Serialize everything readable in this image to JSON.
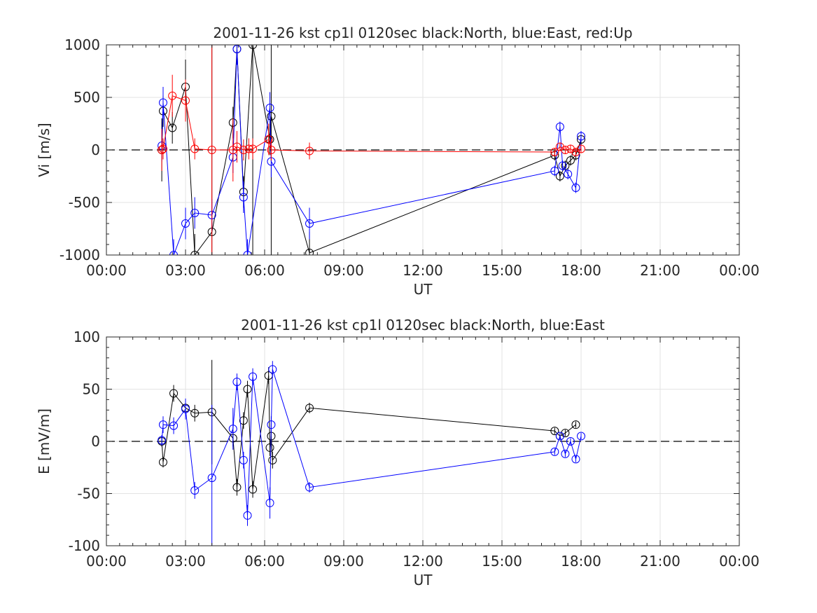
{
  "chart_data": [
    {
      "type": "scatter",
      "title": "2001-11-26 kst cp1l 0120sec black:North, blue:East, red:Up",
      "xlabel": "UT",
      "ylabel": "Vi [m/s]",
      "xlim": [
        0,
        24
      ],
      "ylim": [
        -1000,
        1000
      ],
      "x_ticks": [
        "00:00",
        "03:00",
        "06:00",
        "09:00",
        "12:00",
        "15:00",
        "18:00",
        "21:00",
        "00:00"
      ],
      "y_ticks": [
        "-1000",
        "-500",
        "0",
        "500",
        "1000"
      ],
      "grid": true,
      "zero_line": "dashed",
      "series": [
        {
          "color": "#000000",
          "x": [
            2.1,
            2.15,
            2.5,
            3.0,
            3.35,
            4.0,
            4.8,
            4.95,
            5.2,
            5.55,
            6.2,
            6.25,
            7.7,
            17.0,
            17.2,
            17.4,
            17.6,
            17.8,
            18.0
          ],
          "y": [
            0,
            370,
            210,
            600,
            -1000,
            -780,
            260,
            960,
            -400,
            1000,
            100,
            320,
            -980,
            -50,
            -250,
            -150,
            -100,
            -50,
            100
          ],
          "err": [
            300,
            150,
            150,
            260,
            200,
            2000,
            150,
            150,
            150,
            2000,
            150,
            2000,
            200,
            50,
            50,
            50,
            50,
            50,
            50
          ]
        },
        {
          "color": "#0000ff",
          "x": [
            2.1,
            2.15,
            2.55,
            3.0,
            3.35,
            4.0,
            4.8,
            4.95,
            5.2,
            5.35,
            6.2,
            6.25,
            7.7,
            17.0,
            17.2,
            17.3,
            17.5,
            17.8,
            18.0
          ],
          "y": [
            40,
            450,
            -1000,
            -700,
            -600,
            -620,
            -70,
            960,
            -450,
            -1000,
            400,
            -110,
            -700,
            -200,
            220,
            -150,
            -230,
            -360,
            130
          ],
          "err": [
            150,
            150,
            150,
            150,
            150,
            150,
            150,
            150,
            150,
            150,
            150,
            150,
            150,
            50,
            50,
            50,
            50,
            50,
            50
          ]
        },
        {
          "color": "#ff0000",
          "x": [
            2.1,
            2.15,
            2.5,
            3.0,
            3.35,
            4.0,
            4.8,
            4.95,
            5.2,
            5.4,
            5.55,
            6.15,
            6.25,
            7.7,
            17.0,
            17.2,
            17.4,
            17.6,
            17.8,
            18.0
          ],
          "y": [
            0,
            10,
            515,
            470,
            10,
            0,
            0,
            30,
            0,
            10,
            10,
            100,
            0,
            -10,
            -20,
            30,
            0,
            10,
            -20,
            10
          ],
          "err": [
            200,
            100,
            200,
            200,
            100,
            1000,
            300,
            150,
            100,
            100,
            100,
            150,
            100,
            80,
            40,
            40,
            40,
            40,
            40,
            40
          ]
        }
      ]
    },
    {
      "type": "scatter",
      "title": "2001-11-26 kst cp1l 0120sec black:North, blue:East",
      "xlabel": "UT",
      "ylabel": "E [mV/m]",
      "xlim": [
        0,
        24
      ],
      "ylim": [
        -100,
        100
      ],
      "x_ticks": [
        "00:00",
        "03:00",
        "06:00",
        "09:00",
        "12:00",
        "15:00",
        "18:00",
        "21:00",
        "00:00"
      ],
      "y_ticks": [
        "-100",
        "-50",
        "0",
        "50",
        "100"
      ],
      "grid": true,
      "zero_line": "dashed",
      "series": [
        {
          "color": "#000000",
          "x": [
            2.1,
            2.15,
            2.55,
            3.0,
            3.35,
            4.0,
            4.8,
            4.95,
            5.2,
            5.35,
            5.55,
            6.15,
            6.2,
            6.25,
            6.3,
            7.7,
            17.0,
            17.2,
            17.4,
            17.8
          ],
          "y": [
            0,
            -20,
            46,
            32,
            27,
            28,
            3,
            -44,
            20,
            50,
            -46,
            63,
            -6,
            5,
            -18,
            32,
            10,
            5,
            8,
            16
          ],
          "err": [
            5,
            5,
            8,
            8,
            8,
            50,
            8,
            8,
            8,
            8,
            8,
            8,
            8,
            8,
            8,
            5,
            3,
            3,
            3,
            3
          ]
        },
        {
          "color": "#0000ff",
          "x": [
            2.1,
            2.15,
            2.55,
            3.0,
            3.35,
            4.0,
            4.8,
            4.95,
            5.2,
            5.35,
            5.55,
            6.2,
            6.25,
            6.3,
            7.7,
            17.0,
            17.2,
            17.4,
            17.6,
            17.8,
            18.0
          ],
          "y": [
            1,
            16,
            15,
            31,
            -47,
            -35,
            12,
            57,
            -18,
            -71,
            62,
            -59,
            16,
            69,
            -44,
            -10,
            5,
            -12,
            0,
            -17,
            5
          ],
          "err": [
            5,
            8,
            8,
            10,
            8,
            70,
            20,
            8,
            8,
            10,
            8,
            15,
            8,
            8,
            5,
            3,
            3,
            3,
            3,
            3,
            3
          ]
        }
      ]
    }
  ]
}
